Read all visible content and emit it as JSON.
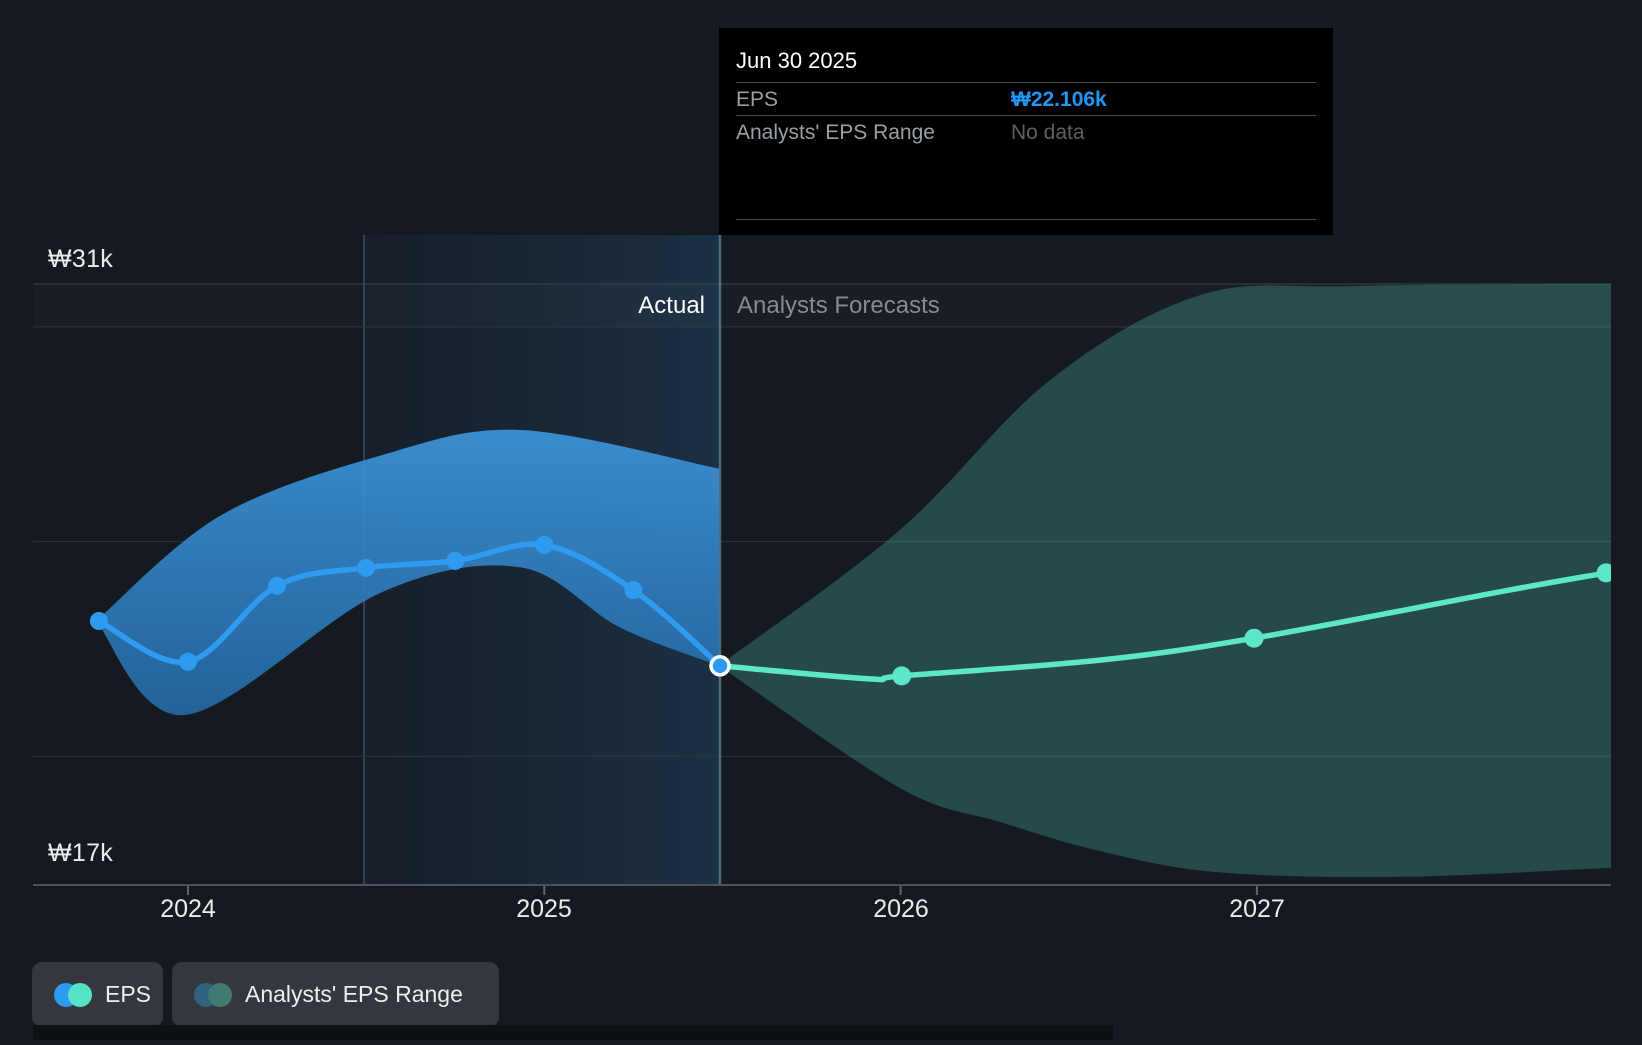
{
  "tooltip": {
    "date": "Jun 30 2025",
    "rows": [
      {
        "label": "EPS",
        "value": "₩22.106k"
      },
      {
        "label": "Analysts' EPS Range",
        "value": "No data"
      }
    ]
  },
  "chart": {
    "y_axis_top_label": "₩31k",
    "y_axis_bottom_label": "₩17k",
    "x_tick_labels": [
      "2024",
      "2025",
      "2026",
      "2027"
    ],
    "divider_left_label": "Actual",
    "divider_right_label": "Analysts Forecasts"
  },
  "legend": [
    {
      "label": "EPS",
      "icon": "eps-dual-circle-icon"
    },
    {
      "label": "Analysts' EPS Range",
      "icon": "range-dual-circle-icon"
    }
  ],
  "colors": {
    "background": "#151a21",
    "tooltip_bg": "#000000",
    "accent_blue": "#2e9bf0",
    "accent_teal": "#5ce8c8",
    "band_blue_top": "#3c95da",
    "band_blue_bottom": "#2468a3",
    "teal_band_fill": "#5ce8c8",
    "tooltip_value_blue": "#2196f3",
    "grid_strong": "#3e444c",
    "grid_soft": "#2f353c",
    "axis_line": "#4b5158",
    "tick_mark": "#60666d",
    "divider_line": "rgba(125,175,215,0.5)",
    "highlight_edge": "rgba(110,160,205,0.28)",
    "highlight_fill_left": "rgba(45,110,175,0.06)",
    "highlight_fill_right": "rgba(50,125,190,0.22)"
  },
  "chart_data": {
    "type": "line",
    "title": "EPS actual vs analysts forecast",
    "currency": "₩",
    "unit": "k",
    "ylim": [
      17,
      31
    ],
    "xlim": [
      2023.565,
      2027.995
    ],
    "y_gridline_values": [
      31,
      30,
      25,
      20
    ],
    "y_axis_labels": [
      {
        "value": 31,
        "label": "₩31k"
      },
      {
        "value": 17,
        "label": "₩17k"
      }
    ],
    "x_ticks": [
      {
        "value": 2024,
        "label": "2024"
      },
      {
        "value": 2025,
        "label": "2025"
      },
      {
        "value": 2026,
        "label": "2026"
      },
      {
        "value": 2027,
        "label": "2027"
      }
    ],
    "divider_x": 2025.493,
    "divider_date": "Jun 30 2025",
    "highlight_range": [
      2024.494,
      2025.493
    ],
    "legend_position": "bottom-left",
    "grid": true,
    "series": [
      {
        "name": "EPS (actual)",
        "role": "actual",
        "x": [
          2023.75,
          2024.0,
          2024.25,
          2024.5,
          2024.75,
          2025.0,
          2025.25,
          2025.493
        ],
        "values": [
          23.15,
          22.2,
          23.97,
          24.39,
          24.55,
          24.92,
          23.87,
          22.106
        ],
        "dot_indices": [
          0,
          1,
          2,
          3,
          4,
          5,
          6
        ],
        "ring_index": 7
      },
      {
        "name": "EPS (analysts forecast)",
        "role": "forecast",
        "x": [
          2025.493,
          2025.914,
          2026.003,
          2026.56,
          2026.992,
          2027.682,
          2027.98
        ],
        "values": [
          22.106,
          21.8,
          21.87,
          22.24,
          22.75,
          23.83,
          24.27
        ],
        "dot_indices": [
          2,
          4,
          6
        ]
      }
    ],
    "bands": {
      "actual_range": {
        "upper": {
          "x": [
            2023.742,
            2024.09,
            2024.539,
            2024.932,
            2025.49
          ],
          "values": [
            23.15,
            25.6,
            27.0,
            27.6,
            26.7
          ]
        },
        "lower": {
          "x": [
            2023.742,
            2023.992,
            2024.539,
            2024.932,
            2025.212,
            2025.49
          ],
          "values": [
            23.15,
            20.96,
            23.8,
            24.4,
            23.0,
            22.11
          ]
        }
      },
      "forecast_range": {
        "upper": {
          "x": [
            2025.49,
            2025.998,
            2026.419,
            2026.84,
            2027.261,
            2027.994
          ],
          "values": [
            22.11,
            25.27,
            28.76,
            30.74,
            30.95,
            31.0
          ]
        },
        "lower": {
          "x": [
            2025.49,
            2025.998,
            2026.279,
            2026.56,
            2026.888,
            2027.402,
            2027.994
          ],
          "values": [
            22.11,
            19.26,
            18.47,
            17.79,
            17.3,
            17.19,
            17.4
          ]
        }
      }
    }
  }
}
